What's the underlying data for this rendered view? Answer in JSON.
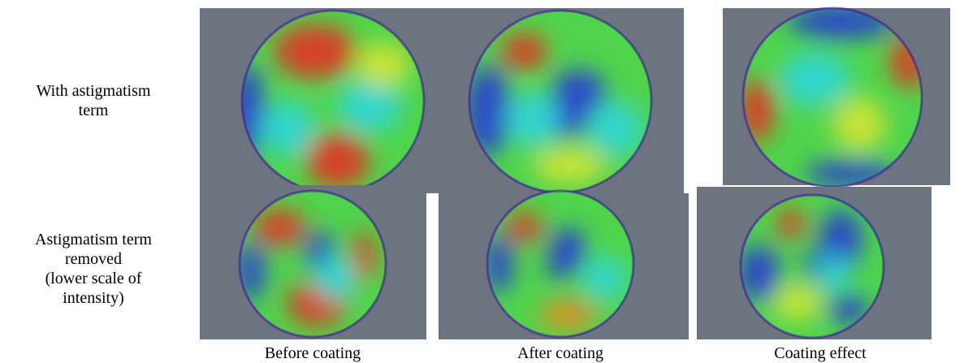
{
  "row_labels": [
    {
      "lines": [
        "With astigmatism",
        "term"
      ]
    },
    {
      "lines": [
        "Astigmatism term",
        "removed",
        "(lower scale of",
        "intensity)"
      ]
    }
  ],
  "column_labels": [
    "Before coating",
    "After coating",
    "Coating effect"
  ]
}
